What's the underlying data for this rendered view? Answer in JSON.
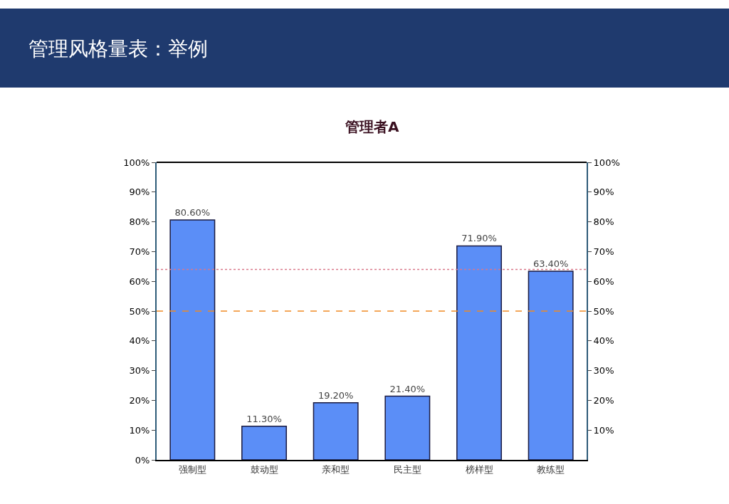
{
  "chart_data": {
    "type": "bar",
    "title": "管理风格量表：举例",
    "subtitle": "管理者A",
    "categories": [
      "强制型",
      "鼓动型",
      "亲和型",
      "民主型",
      "榜样型",
      "教练型"
    ],
    "values": [
      80.6,
      11.3,
      19.2,
      21.4,
      71.9,
      63.4
    ],
    "value_labels": [
      "80.60%",
      "11.30%",
      "19.20%",
      "21.40%",
      "71.90%",
      "63.40%"
    ],
    "color": "#5b8ef7",
    "ylim": [
      0,
      100
    ],
    "yticks": [
      {
        "value": 0,
        "label": "0%"
      },
      {
        "value": 10,
        "label": "10%"
      },
      {
        "value": 20,
        "label": "20%"
      },
      {
        "value": 30,
        "label": "30%"
      },
      {
        "value": 40,
        "label": "40%"
      },
      {
        "value": 50,
        "label": "50%"
      },
      {
        "value": 60,
        "label": "60%"
      },
      {
        "value": 70,
        "label": "70%"
      },
      {
        "value": 80,
        "label": "80%"
      },
      {
        "value": 90,
        "label": "90%"
      },
      {
        "value": 100,
        "label": "100%"
      }
    ],
    "y2lim": [
      0,
      100
    ],
    "y2ticks": [
      {
        "value": 10,
        "label": "10%"
      },
      {
        "value": 20,
        "label": "20%"
      },
      {
        "value": 30,
        "label": "30%"
      },
      {
        "value": 40,
        "label": "40%"
      },
      {
        "value": 50,
        "label": "50%"
      },
      {
        "value": 60,
        "label": "60%"
      },
      {
        "value": 70,
        "label": "70%"
      },
      {
        "value": 80,
        "label": "80%"
      },
      {
        "value": 90,
        "label": "90%"
      },
      {
        "value": 100,
        "label": "100%"
      }
    ],
    "ref_lines": [
      {
        "axis": "y",
        "value": 64,
        "color": "#d9778a",
        "line_style": "dotted"
      },
      {
        "axis": "y",
        "value": 50,
        "color": "#f08a24",
        "line_style": "dashed"
      }
    ],
    "grid": false,
    "legend": false
  }
}
